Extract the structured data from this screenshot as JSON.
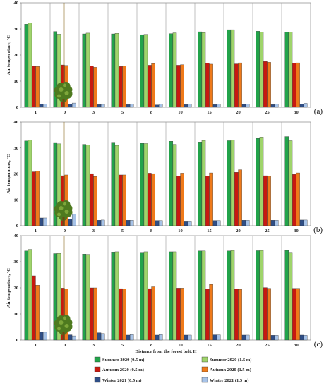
{
  "chart_data": [
    {
      "type": "bar",
      "panel_label": "(a)",
      "ylabel": "Air temperature, °C",
      "ylim": [
        0,
        40
      ],
      "yticks": [
        "0",
        "10",
        "20",
        "30",
        "40"
      ],
      "categories": [
        "1",
        "0",
        "3",
        "5",
        "8",
        "10",
        "15",
        "20",
        "25",
        "30"
      ],
      "series": [
        {
          "name": "Summer 2020 (0.5 m)",
          "values": [
            31.8,
            29.0,
            28.1,
            28.1,
            27.8,
            28.2,
            28.9,
            29.7,
            29.1,
            28.7
          ]
        },
        {
          "name": "Summer 2020 (1.5 m)",
          "values": [
            32.3,
            28.0,
            28.4,
            28.3,
            27.9,
            28.5,
            28.6,
            29.7,
            28.7,
            28.8
          ]
        },
        {
          "name": "Autumn 2020 (0.5 m)",
          "values": [
            15.7,
            16.2,
            15.8,
            15.6,
            16.1,
            16.1,
            16.8,
            16.6,
            17.5,
            16.9
          ]
        },
        {
          "name": "Autumn 2020 (1.5 m)",
          "values": [
            15.6,
            16.0,
            15.3,
            15.8,
            16.7,
            16.3,
            16.5,
            17.0,
            17.2,
            17.0
          ]
        },
        {
          "name": "Winter 2021 (0.5 m)",
          "values": [
            1.3,
            1.3,
            1.0,
            1.0,
            0.9,
            1.0,
            1.0,
            1.1,
            1.0,
            1.2
          ]
        },
        {
          "name": "Winter 2021 (1.5 m)",
          "values": [
            1.3,
            1.6,
            1.1,
            1.3,
            1.2,
            1.2,
            1.2,
            1.3,
            1.2,
            1.5
          ]
        }
      ]
    },
    {
      "type": "bar",
      "panel_label": "(b)",
      "ylabel": "Air temperature, °C",
      "ylim": [
        0,
        40
      ],
      "yticks": [
        "0",
        "10",
        "20",
        "30",
        "40"
      ],
      "categories": [
        "1",
        "0",
        "3",
        "5",
        "8",
        "10",
        "15",
        "20",
        "25",
        "30"
      ],
      "series": [
        {
          "name": "Summer 2020 (0.5 m)",
          "values": [
            32.7,
            32.1,
            31.4,
            32.2,
            31.8,
            32.6,
            32.3,
            32.8,
            33.7,
            34.4
          ]
        },
        {
          "name": "Summer 2020 (1.5 m)",
          "values": [
            33.0,
            31.6,
            31.1,
            31.0,
            31.7,
            31.4,
            32.9,
            33.1,
            34.2,
            32.8
          ]
        },
        {
          "name": "Autumn 2020 (0.5 m)",
          "values": [
            20.8,
            19.3,
            20.1,
            19.6,
            20.3,
            19.2,
            19.2,
            20.6,
            19.3,
            19.8
          ]
        },
        {
          "name": "Autumn 2020 (1.5 m)",
          "values": [
            21.0,
            19.6,
            19.0,
            19.6,
            20.1,
            20.3,
            20.4,
            21.6,
            19.1,
            20.4
          ]
        },
        {
          "name": "Winter 2021 (0.5 m)",
          "values": [
            3.0,
            2.6,
            2.1,
            2.1,
            2.0,
            1.8,
            2.0,
            2.1,
            2.1,
            2.2
          ]
        },
        {
          "name": "Winter 2021 (1.5 m)",
          "values": [
            3.0,
            4.5,
            2.2,
            2.1,
            2.0,
            1.8,
            2.0,
            2.1,
            2.1,
            2.2
          ]
        }
      ]
    },
    {
      "type": "bar",
      "panel_label": "(c)",
      "ylabel": "Air temperature, °C",
      "xlabel": "Distance from the forest belt, H",
      "ylim": [
        0,
        40
      ],
      "yticks": [
        "0",
        "10",
        "20",
        "30",
        "40"
      ],
      "categories": [
        "1",
        "0",
        "3",
        "5",
        "8",
        "10",
        "15",
        "20",
        "25",
        "30"
      ],
      "series": [
        {
          "name": "Summer 2020 (0.5 m)",
          "values": [
            34.1,
            33.1,
            32.9,
            33.7,
            33.6,
            33.8,
            34.1,
            34.1,
            34.2,
            34.3
          ]
        },
        {
          "name": "Summer 2020 (1.5 m)",
          "values": [
            34.7,
            33.2,
            32.8,
            33.8,
            33.8,
            33.8,
            34.1,
            34.3,
            34.3,
            33.6
          ]
        },
        {
          "name": "Autumn 2020 (0.5 m)",
          "values": [
            24.6,
            19.9,
            20.0,
            19.7,
            19.7,
            19.9,
            19.5,
            19.5,
            20.1,
            19.8
          ]
        },
        {
          "name": "Autumn 2020 (1.5 m)",
          "values": [
            21.0,
            19.6,
            20.0,
            19.6,
            20.4,
            19.9,
            21.3,
            19.4,
            19.8,
            19.8
          ]
        },
        {
          "name": "Winter 2021 (0.5 m)",
          "values": [
            3.0,
            2.0,
            2.8,
            1.9,
            1.9,
            1.9,
            2.0,
            1.9,
            1.8,
            1.9
          ]
        },
        {
          "name": "Winter 2021 (1.5 m)",
          "values": [
            3.0,
            1.6,
            2.5,
            2.1,
            2.1,
            1.9,
            2.0,
            1.9,
            1.8,
            1.8
          ]
        }
      ]
    }
  ],
  "legend": [
    {
      "label": "Summer 2020 (0.5 m)",
      "color": "#22a34a"
    },
    {
      "label": "Summer 2020 (1.5 m)",
      "color": "#9fd46b"
    },
    {
      "label": "Autumn 2020 (0.5 m)",
      "color": "#c8190f"
    },
    {
      "label": "Autumn 2020 (1.5 m)",
      "color": "#ef7a1a"
    },
    {
      "label": "Winter 2021 (0.5 m)",
      "color": "#2f4e86"
    },
    {
      "label": "Winter 2021 (1.5 m)",
      "color": "#a7c3e8"
    }
  ],
  "icons": {
    "tree": "tree-icon"
  }
}
